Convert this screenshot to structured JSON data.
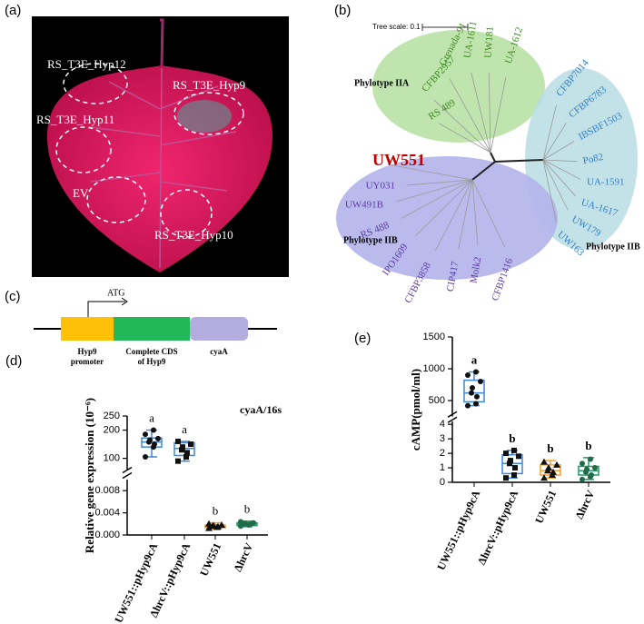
{
  "panels": {
    "a": {
      "label": "(a)",
      "annotations": [
        "RS_T3E_Hyp12",
        "RS_T3E_Hyp9",
        "RS_T3E_Hyp11",
        "EV",
        "RS_T3E_Hyp10"
      ]
    },
    "b": {
      "label": "(b)",
      "scale_label": "Tree scale: 0.1",
      "groups": [
        {
          "name": "Phylotype IIA",
          "leaves": [
            "Grenada-91",
            "UA-1611",
            "UW181",
            "UA-1612",
            "CFBP2957",
            "RS 489"
          ]
        },
        {
          "name": "Phylotype IIB",
          "leaves": [
            "CFBP7014",
            "CFBP6783",
            "IBSBF1503",
            "Po82",
            "UA-1591",
            "UA-1617",
            "UW179",
            "UW163"
          ]
        },
        {
          "name": "Phylotype IIB",
          "leaves": [
            "UW551",
            "UY031",
            "UW491B",
            "RS 488",
            "IPO1609",
            "CFBP3858",
            "CIP417",
            "Molk2",
            "CFBP1416"
          ]
        }
      ]
    },
    "c": {
      "label": "(c)",
      "start": "ATG",
      "segments": [
        [
          "Hyp9",
          "promoter"
        ],
        [
          "Complete CDS",
          "of Hyp9"
        ],
        [
          "cyaA"
        ]
      ]
    }
  },
  "chart_data": [
    {
      "type": "box",
      "label": "(d)",
      "annotation": "cyaA/16s",
      "y_label": "Relative gene expression (10⁻⁶)",
      "categories": [
        "UW551::pHyp9cA",
        "ΔhrcV::pHyp9cA",
        "UW551",
        "ΔhrcV"
      ],
      "letters": [
        "a",
        "a",
        "b",
        "b"
      ],
      "colors": [
        "#3f86d6",
        "#3f86d6",
        "#f0a030",
        "#1f9a66"
      ],
      "markers": [
        "circle",
        "square",
        "triangle",
        "circle"
      ],
      "segments": [
        {
          "ylim": [
            0,
            0.01
          ],
          "yticks": [
            {
              "value": 0,
              "label": "0.000"
            },
            {
              "value": 0.004,
              "label": "0.004"
            },
            {
              "value": 0.008,
              "label": "0.008"
            }
          ]
        },
        {
          "ylim": [
            60,
            250
          ],
          "yticks": [
            100,
            200,
            250
          ]
        }
      ],
      "boxes": [
        {
          "min": 105,
          "q1": 140,
          "median": 158,
          "q3": 172,
          "max": 200
        },
        {
          "min": 90,
          "q1": 110,
          "median": 135,
          "q3": 155,
          "max": 160
        },
        {
          "min": 0.0011,
          "q1": 0.0013,
          "median": 0.0015,
          "q3": 0.0018,
          "max": 0.0022
        },
        {
          "min": 0.0015,
          "q1": 0.0017,
          "median": 0.002,
          "q3": 0.0022,
          "max": 0.0025
        }
      ],
      "points": [
        [
          105,
          140,
          150,
          158,
          165,
          170,
          185,
          200
        ],
        [
          90,
          105,
          120,
          130,
          140,
          150,
          160
        ],
        [
          0.0012,
          0.0014,
          0.0015,
          0.0016,
          0.0017,
          0.0018,
          0.002
        ],
        [
          0.0016,
          0.0018,
          0.0019,
          0.002,
          0.0021,
          0.0022,
          0.0024
        ]
      ]
    },
    {
      "type": "box",
      "label": "(e)",
      "y_label": "cAMP(pmol/ml)",
      "categories": [
        "UW551::pHyp9cA",
        "ΔhrcV::pHyp9cA",
        "UW551",
        "ΔhrcV"
      ],
      "letters": [
        "a",
        "b",
        "b",
        "b"
      ],
      "colors": [
        "#3f86d6",
        "#3f86d6",
        "#f0a030",
        "#1f9a66"
      ],
      "markers": [
        "circle",
        "square",
        "triangle",
        "circle"
      ],
      "segments": [
        {
          "ylim": [
            0,
            4.2
          ],
          "yticks": [
            0,
            1,
            2,
            3,
            4
          ]
        },
        {
          "ylim": [
            250,
            1500
          ],
          "yticks": [
            500,
            1000,
            1500
          ]
        }
      ],
      "boxes": [
        {
          "min": 420,
          "q1": 480,
          "median": 620,
          "q3": 820,
          "max": 950
        },
        {
          "min": 0.3,
          "q1": 0.6,
          "median": 1.3,
          "q3": 1.9,
          "max": 2.2
        },
        {
          "min": 0.3,
          "q1": 0.5,
          "median": 0.8,
          "q3": 1.2,
          "max": 1.5
        },
        {
          "min": 0.2,
          "q1": 0.5,
          "median": 0.8,
          "q3": 1.1,
          "max": 1.7
        }
      ],
      "points": [
        [
          420,
          450,
          560,
          620,
          700,
          800,
          900,
          950
        ],
        [
          0.3,
          0.5,
          1.0,
          1.3,
          1.5,
          1.8,
          2.0,
          2.2
        ],
        [
          0.3,
          0.5,
          0.7,
          0.8,
          1.0,
          1.2,
          1.4
        ],
        [
          0.2,
          0.4,
          0.5,
          0.7,
          0.9,
          1.0,
          1.3,
          1.6
        ]
      ]
    }
  ]
}
